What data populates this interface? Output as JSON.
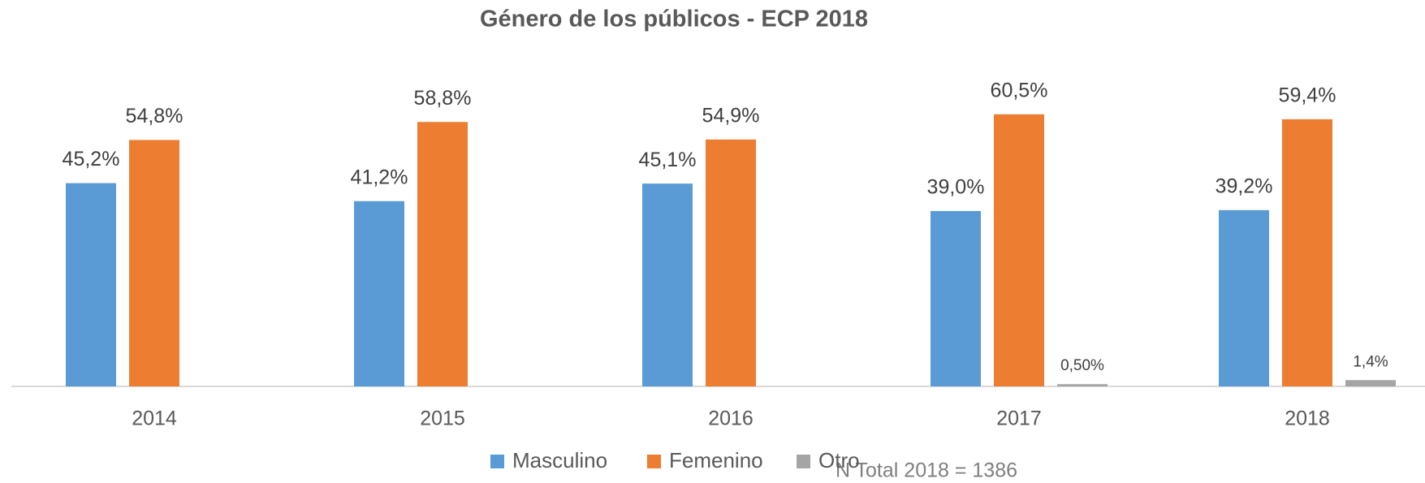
{
  "chart_data": {
    "type": "bar",
    "title": "Género de los públicos - ECP 2018",
    "categories": [
      "2014",
      "2015",
      "2016",
      "2017",
      "2018"
    ],
    "series": [
      {
        "name": "Masculino",
        "color": "#5b9bd5",
        "values": [
          45.2,
          41.2,
          45.1,
          39.0,
          39.2
        ],
        "value_labels": [
          "45,2%",
          "41,2%",
          "45,1%",
          "39,0%",
          "39,2%"
        ]
      },
      {
        "name": "Femenino",
        "color": "#ed7d31",
        "values": [
          54.8,
          58.8,
          54.9,
          60.5,
          59.4
        ],
        "value_labels": [
          "54,8%",
          "58,8%",
          "54,9%",
          "60,5%",
          "59,4%"
        ]
      },
      {
        "name": "Otro",
        "color": "#a5a5a5",
        "values": [
          null,
          null,
          null,
          0.5,
          1.4
        ],
        "value_labels": [
          null,
          null,
          null,
          "0,50%",
          "1,4%"
        ]
      }
    ],
    "legend": "bottom",
    "annotation": "N Total 2018 = 1386"
  }
}
